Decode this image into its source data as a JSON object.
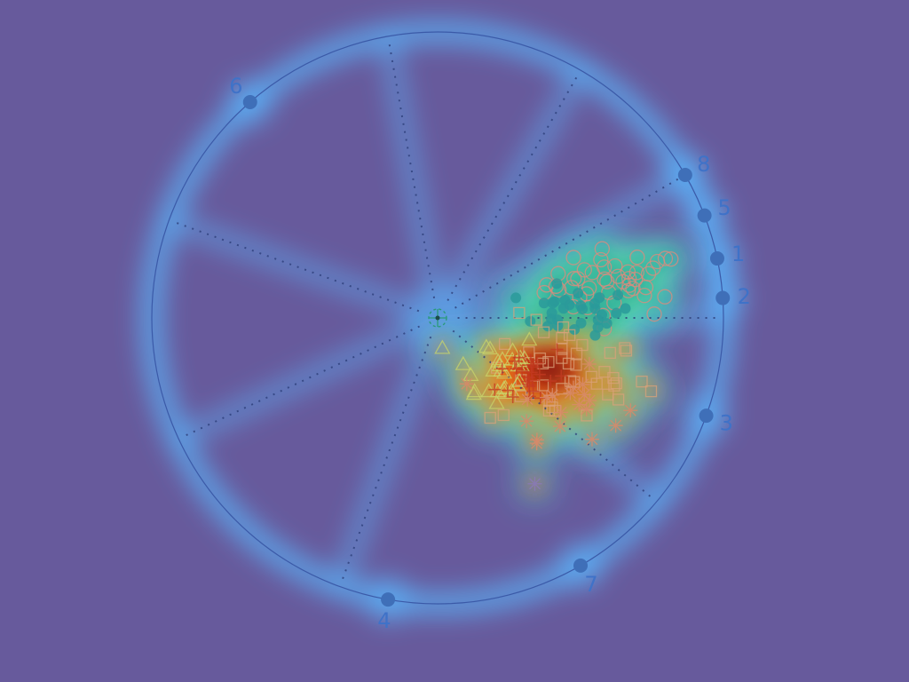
{
  "chart_data": {
    "type": "scatter",
    "title": "",
    "xlabel": "",
    "ylabel": "",
    "center": [
      0,
      0
    ],
    "radius": 1,
    "anchors": [
      {
        "label": "1",
        "angle_deg": 12
      },
      {
        "label": "2",
        "angle_deg": 4
      },
      {
        "label": "3",
        "angle_deg": -20
      },
      {
        "label": "4",
        "angle_deg": -100
      },
      {
        "label": "5",
        "angle_deg": 21
      },
      {
        "label": "6",
        "angle_deg": 131
      },
      {
        "label": "7",
        "angle_deg": -60
      },
      {
        "label": "8",
        "angle_deg": 30
      }
    ],
    "spokes_deg": [
      0,
      30,
      60,
      100,
      160,
      205,
      250,
      320
    ],
    "density_hotspot": {
      "x": 0.38,
      "y": -0.18
    },
    "groups": [
      {
        "marker": "circle",
        "color": "#e08a7c",
        "center": [
          0.62,
          0.12
        ],
        "spread": [
          0.12,
          0.06
        ],
        "count": 45
      },
      {
        "marker": "dot",
        "color": "#2a9a9a",
        "center": [
          0.48,
          0.02
        ],
        "spread": [
          0.1,
          0.04
        ],
        "count": 30
      },
      {
        "marker": "square",
        "color": "#d9a27a",
        "center": [
          0.45,
          -0.2
        ],
        "spread": [
          0.14,
          0.1
        ],
        "count": 45
      },
      {
        "marker": "triangle",
        "color": "#c9d46a",
        "center": [
          0.2,
          -0.18
        ],
        "spread": [
          0.08,
          0.07
        ],
        "count": 30
      },
      {
        "marker": "cross",
        "color": "#c43a22",
        "center": [
          0.33,
          -0.2
        ],
        "spread": [
          0.06,
          0.06
        ],
        "count": 25
      },
      {
        "marker": "star",
        "color": "#d98a6a",
        "center": [
          0.45,
          -0.3
        ],
        "spread": [
          0.1,
          0.06
        ],
        "count": 20
      },
      {
        "marker": "star",
        "color": "#8a7ab8",
        "center": [
          0.34,
          -0.58
        ],
        "spread": [
          0,
          0
        ],
        "count": 1
      }
    ]
  }
}
